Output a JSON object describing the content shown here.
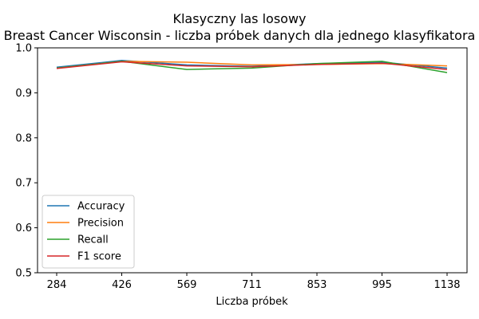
{
  "chart_data": {
    "type": "line",
    "title": "Klasyczny las losowy",
    "subtitle": "Breast Cancer Wisconsin - liczba próbek danych dla jednego klasyfikatora",
    "xlabel": "Liczba próbek",
    "ylabel": "",
    "categories": [
      "284",
      "426",
      "569",
      "711",
      "853",
      "995",
      "1138"
    ],
    "ylim": [
      0.5,
      1.0
    ],
    "yticks": [
      "0.5",
      "0.6",
      "0.7",
      "0.8",
      "0.9",
      "1.0"
    ],
    "grid": false,
    "legend_position": "lower-left",
    "series": [
      {
        "name": "Accuracy",
        "color": "#1f77b4",
        "values": [
          0.957,
          0.972,
          0.962,
          0.959,
          0.965,
          0.968,
          0.955
        ]
      },
      {
        "name": "Precision",
        "color": "#ff7f0e",
        "values": [
          0.955,
          0.97,
          0.968,
          0.962,
          0.963,
          0.965,
          0.96
        ]
      },
      {
        "name": "Recall",
        "color": "#2ca02c",
        "values": [
          0.955,
          0.97,
          0.952,
          0.955,
          0.965,
          0.97,
          0.945
        ]
      },
      {
        "name": "F1 score",
        "color": "#d62728",
        "values": [
          0.954,
          0.969,
          0.96,
          0.958,
          0.963,
          0.966,
          0.952
        ]
      }
    ]
  }
}
